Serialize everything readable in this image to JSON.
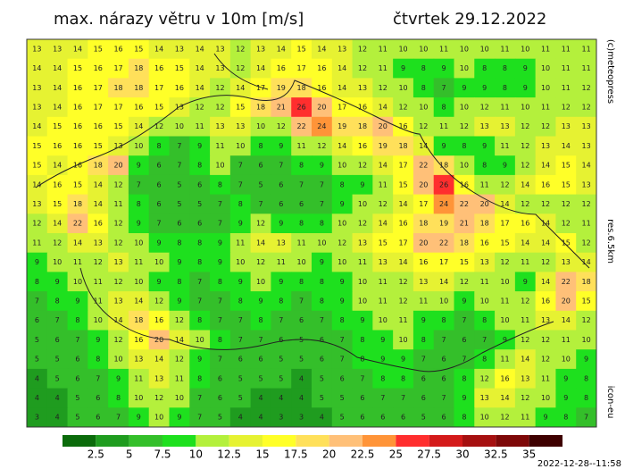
{
  "header": {
    "title": "max. nárazy větru v 10m [m/s]",
    "date": "čtvrtek 29.12.2022"
  },
  "side": {
    "copyright": "(c)meteopress",
    "resolution": "res.6.5km",
    "model": "icon-eu"
  },
  "footer": {
    "timestamp": "2022-12-28--11:58"
  },
  "colorbar": {
    "levels": [
      2.5,
      5,
      7.5,
      10,
      12.5,
      15,
      17.5,
      20,
      22.5,
      25,
      27.5,
      30,
      32.5,
      35
    ],
    "colors": [
      "#0b6b0b",
      "#1f9c1f",
      "#34bf2a",
      "#1ee01e",
      "#b4f03c",
      "#e6f232",
      "#ffff28",
      "#ffe05a",
      "#ffc078",
      "#ff9438",
      "#ff2e2e",
      "#d41a1a",
      "#a61010",
      "#7e0808",
      "#3e0000"
    ]
  },
  "grid": {
    "rows": [
      [
        13,
        13,
        14,
        15,
        16,
        15,
        14,
        13,
        14,
        13,
        12,
        13,
        14,
        15,
        14,
        13,
        12,
        11,
        10,
        10,
        11,
        10,
        10,
        11,
        10,
        11,
        11,
        11
      ],
      [
        14,
        14,
        15,
        16,
        17,
        18,
        16,
        15,
        14,
        13,
        12,
        14,
        16,
        17,
        16,
        14,
        12,
        11,
        9,
        8,
        9,
        10,
        8,
        8,
        9,
        10,
        11,
        11
      ],
      [
        13,
        14,
        16,
        17,
        18,
        18,
        17,
        16,
        14,
        12,
        14,
        17,
        19,
        18,
        16,
        14,
        13,
        12,
        10,
        8,
        7,
        9,
        9,
        8,
        9,
        10,
        11,
        12
      ],
      [
        13,
        14,
        16,
        17,
        17,
        16,
        15,
        13,
        12,
        12,
        15,
        18,
        21,
        26,
        20,
        17,
        16,
        14,
        12,
        10,
        8,
        10,
        12,
        11,
        10,
        11,
        12,
        12
      ],
      [
        14,
        15,
        16,
        16,
        15,
        14,
        12,
        10,
        11,
        13,
        13,
        10,
        12,
        22,
        24,
        19,
        18,
        20,
        16,
        12,
        11,
        12,
        13,
        13,
        12,
        12,
        13,
        13
      ],
      [
        15,
        16,
        16,
        15,
        13,
        10,
        8,
        7,
        9,
        11,
        10,
        8,
        9,
        11,
        12,
        14,
        16,
        19,
        18,
        14,
        9,
        8,
        9,
        11,
        12,
        13,
        14,
        13
      ],
      [
        15,
        14,
        16,
        18,
        20,
        9,
        6,
        7,
        8,
        10,
        7,
        6,
        7,
        8,
        9,
        10,
        12,
        14,
        17,
        22,
        18,
        10,
        8,
        9,
        12,
        14,
        15,
        14
      ],
      [
        14,
        16,
        15,
        14,
        12,
        7,
        6,
        5,
        6,
        8,
        7,
        5,
        6,
        7,
        7,
        8,
        9,
        11,
        15,
        20,
        26,
        16,
        11,
        12,
        14,
        16,
        15,
        13
      ],
      [
        13,
        15,
        18,
        14,
        11,
        8,
        6,
        5,
        5,
        7,
        8,
        7,
        6,
        6,
        7,
        9,
        10,
        12,
        14,
        17,
        24,
        22,
        20,
        14,
        12,
        12,
        12,
        12
      ],
      [
        12,
        14,
        22,
        16,
        12,
        9,
        7,
        6,
        6,
        7,
        9,
        12,
        9,
        8,
        8,
        10,
        12,
        14,
        16,
        18,
        19,
        21,
        18,
        17,
        16,
        14,
        12,
        11
      ],
      [
        11,
        12,
        14,
        13,
        12,
        10,
        9,
        8,
        8,
        9,
        11,
        14,
        13,
        11,
        10,
        12,
        13,
        15,
        17,
        20,
        22,
        18,
        16,
        15,
        14,
        14,
        15,
        12
      ],
      [
        9,
        10,
        11,
        12,
        13,
        11,
        10,
        9,
        8,
        9,
        10,
        12,
        11,
        10,
        9,
        10,
        11,
        13,
        14,
        16,
        17,
        15,
        13,
        12,
        11,
        12,
        13,
        14
      ],
      [
        8,
        9,
        10,
        11,
        12,
        10,
        9,
        8,
        7,
        8,
        9,
        10,
        9,
        8,
        8,
        9,
        10,
        11,
        12,
        13,
        14,
        12,
        11,
        10,
        9,
        14,
        22,
        18
      ],
      [
        7,
        8,
        9,
        11,
        13,
        14,
        12,
        9,
        7,
        7,
        8,
        9,
        8,
        7,
        8,
        9,
        10,
        11,
        12,
        11,
        10,
        9,
        10,
        11,
        12,
        16,
        20,
        15
      ],
      [
        6,
        7,
        8,
        10,
        14,
        18,
        16,
        12,
        8,
        7,
        7,
        8,
        7,
        6,
        7,
        8,
        9,
        10,
        11,
        9,
        8,
        7,
        8,
        10,
        11,
        13,
        14,
        12
      ],
      [
        5,
        6,
        7,
        9,
        12,
        16,
        20,
        14,
        10,
        8,
        7,
        7,
        6,
        5,
        6,
        7,
        8,
        9,
        10,
        8,
        7,
        6,
        7,
        9,
        12,
        12,
        11,
        10
      ],
      [
        5,
        5,
        6,
        8,
        10,
        13,
        14,
        12,
        9,
        7,
        6,
        6,
        5,
        5,
        6,
        7,
        8,
        9,
        9,
        7,
        6,
        7,
        8,
        11,
        14,
        12,
        10,
        9
      ],
      [
        4,
        5,
        6,
        7,
        9,
        11,
        13,
        11,
        8,
        6,
        5,
        5,
        5,
        4,
        5,
        6,
        7,
        8,
        8,
        6,
        6,
        8,
        12,
        16,
        13,
        11,
        9,
        8
      ],
      [
        4,
        4,
        5,
        6,
        8,
        10,
        12,
        10,
        7,
        6,
        5,
        4,
        4,
        4,
        5,
        5,
        6,
        7,
        7,
        6,
        7,
        9,
        13,
        14,
        12,
        10,
        9,
        8
      ],
      [
        3,
        4,
        5,
        6,
        7,
        9,
        10,
        9,
        7,
        5,
        4,
        4,
        3,
        3,
        4,
        5,
        6,
        6,
        6,
        5,
        6,
        8,
        10,
        12,
        11,
        9,
        8,
        7
      ]
    ]
  }
}
